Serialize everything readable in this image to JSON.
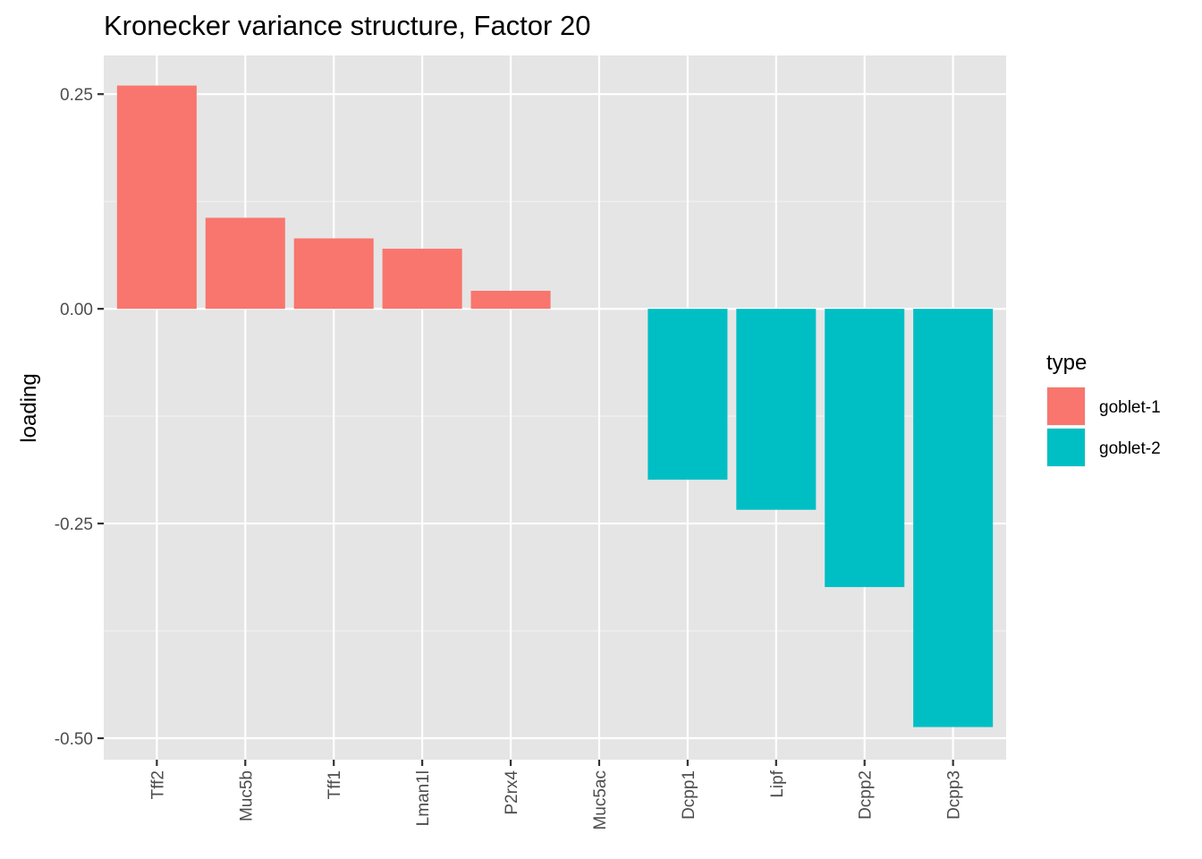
{
  "chart_data": {
    "type": "bar",
    "title": "Kronecker variance structure, Factor 20",
    "xlabel": "",
    "ylabel": "loading",
    "categories": [
      "Tff2",
      "Muc5b",
      "Tff1",
      "Lman1l",
      "P2rx4",
      "Muc5ac",
      "Dcpp1",
      "Lipf",
      "Dcpp2",
      "Dcpp3"
    ],
    "values": [
      0.26,
      0.106,
      0.082,
      0.07,
      0.021,
      0.0,
      -0.199,
      -0.234,
      -0.324,
      -0.487
    ],
    "types": [
      "goblet-1",
      "goblet-1",
      "goblet-1",
      "goblet-1",
      "goblet-1",
      "goblet-2",
      "goblet-2",
      "goblet-2",
      "goblet-2",
      "goblet-2"
    ],
    "ylim": [
      -0.525,
      0.295
    ],
    "yticks": [
      0.25,
      0,
      -0.25,
      -0.5
    ],
    "ytick_labels": [
      "0.25",
      "0.00",
      "-0.25",
      "-0.50"
    ],
    "grid": true,
    "legend": {
      "title": "type",
      "position": "right",
      "entries": [
        {
          "label": "goblet-1",
          "color": "#F8766D"
        },
        {
          "label": "goblet-2",
          "color": "#00BFC4"
        }
      ]
    },
    "colors": {
      "panel_bg": "#e5e5e5",
      "grid_major": "#ffffff",
      "grid_minor": "#f2f2f2",
      "bar_type1": "#F8766D",
      "bar_type2": "#00BFC4"
    }
  }
}
